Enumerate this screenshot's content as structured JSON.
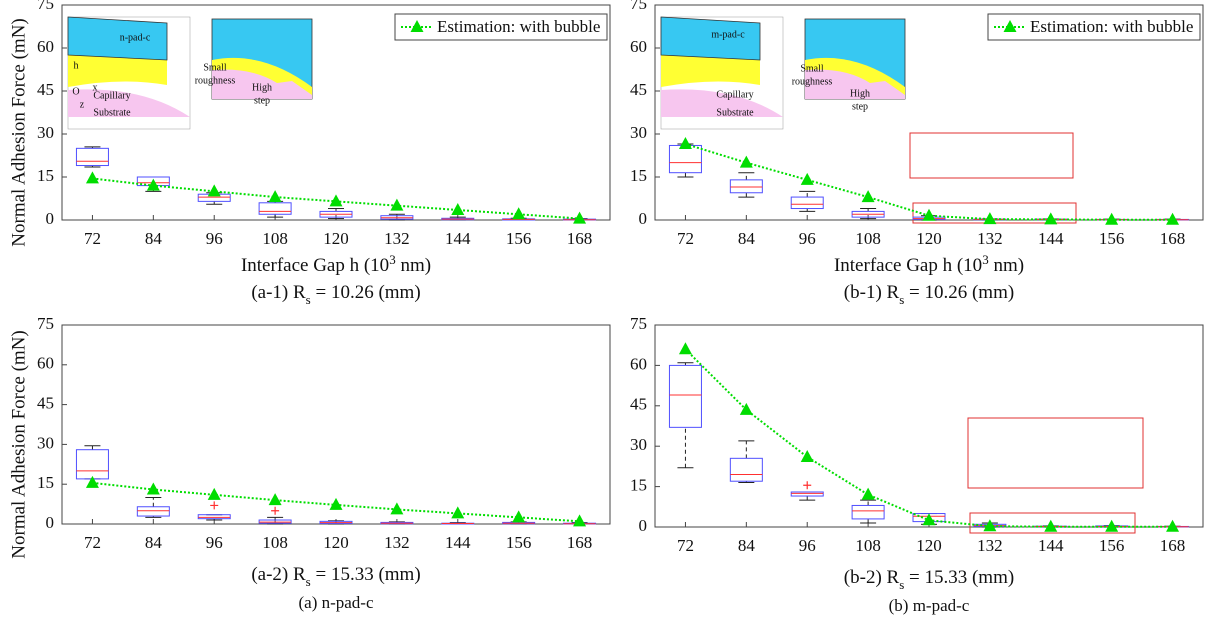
{
  "chart_data": [
    {
      "type": "box",
      "title_prefix": "(a-1) R",
      "title_sub": "s",
      "title_suffix": " = 10.26 (mm)",
      "y_label": "Normal Adhesion Force (mN)",
      "x_label_prefix": "Interface Gap h (10",
      "x_label_sup": "3",
      "x_label_suffix": " nm)",
      "annotations": [
        "n-pad-c",
        "h",
        "O",
        "x",
        "z",
        "Capillary",
        "Substrate",
        "Small",
        "roughness",
        "High",
        "step"
      ],
      "categories": [
        "72",
        "84",
        "96",
        "108",
        "120",
        "132",
        "144",
        "156",
        "168"
      ],
      "ylim": [
        0,
        75
      ],
      "yticks": [
        0,
        15,
        30,
        45,
        60,
        75
      ],
      "legend": "upper right",
      "box_color": "#4f4fff",
      "median_color": "#ff3030",
      "boxes": {
        "whislo": [
          18.5,
          10,
          5.5,
          1,
          0.5,
          0,
          0,
          0,
          0
        ],
        "q1": [
          19,
          12,
          6.5,
          2,
          1,
          0.3,
          0.1,
          0,
          0
        ],
        "med": [
          20.5,
          13,
          8,
          3,
          2,
          0.8,
          0.3,
          0.2,
          0.1
        ],
        "q3": [
          25,
          15,
          9,
          6,
          3,
          1.5,
          0.6,
          0.4,
          0.3
        ],
        "whishi": [
          25.5,
          15,
          9.5,
          6.5,
          4,
          2,
          1,
          0.6,
          0.5
        ],
        "outliers": [
          [],
          [],
          [],
          [],
          [],
          [],
          [],
          [],
          []
        ]
      },
      "series": [
        {
          "name": "Estimation: with bubble",
          "color": "#00dd00",
          "values": [
            14.5,
            12,
            10,
            8,
            6.5,
            5,
            3.5,
            2,
            0.5
          ]
        }
      ]
    },
    {
      "type": "box",
      "title_prefix": "(b-1) R",
      "title_sub": "s",
      "title_suffix": " = 10.26 (mm)",
      "x_label_prefix": "Interface Gap h (10",
      "x_label_sup": "3",
      "x_label_suffix": " nm)",
      "annotations": [
        "m-pad-c",
        "Capillary",
        "Substrate",
        "Small",
        "roughness",
        "High",
        "step"
      ],
      "categories": [
        "72",
        "84",
        "96",
        "108",
        "120",
        "132",
        "144",
        "156",
        "168"
      ],
      "ylim": [
        0,
        75
      ],
      "yticks": [
        0,
        15,
        30,
        45,
        60,
        75
      ],
      "legend": "upper right",
      "box_color": "#4f4fff",
      "median_color": "#ff3030",
      "boxes": {
        "whislo": [
          15,
          8,
          3,
          0.5,
          0,
          0,
          0,
          0,
          0
        ],
        "q1": [
          16.5,
          9.5,
          4,
          1,
          0.2,
          0.1,
          0.1,
          0,
          0
        ],
        "med": [
          20,
          11.5,
          5.5,
          2,
          0.5,
          0.2,
          0.2,
          0.1,
          0.1
        ],
        "q3": [
          26,
          14,
          8,
          3,
          1,
          0.3,
          0.3,
          0.2,
          0.2
        ],
        "whishi": [
          26.5,
          16.5,
          10,
          4,
          1.5,
          0.4,
          0.4,
          0.3,
          0.3
        ],
        "outliers": [
          [],
          [],
          [],
          [],
          [],
          [],
          [],
          [],
          []
        ]
      },
      "series": [
        {
          "name": "Estimation: with bubble",
          "color": "#00dd00",
          "values": [
            26.5,
            20,
            14,
            8,
            1.5,
            0.3,
            0.2,
            0.1,
            0.1
          ]
        }
      ]
    },
    {
      "type": "box",
      "title_prefix": "(a-2) R",
      "title_sub": "s",
      "title_suffix": " = 15.33 (mm)",
      "group_caption": "(a) n-pad-c",
      "y_label": "Normal Adhesion Force (mN)",
      "categories": [
        "72",
        "84",
        "96",
        "108",
        "120",
        "132",
        "144",
        "156",
        "168"
      ],
      "ylim": [
        0,
        75
      ],
      "yticks": [
        0,
        15,
        30,
        45,
        60,
        75
      ],
      "box_color": "#4f4fff",
      "median_color": "#ff3030",
      "boxes": {
        "whislo": [
          17,
          2.5,
          1.5,
          0,
          0,
          0,
          0,
          0,
          0
        ],
        "q1": [
          17,
          3,
          2,
          0.3,
          0.2,
          0.1,
          0,
          0.1,
          0
        ],
        "med": [
          20,
          5,
          2.5,
          0.7,
          0.5,
          0.3,
          0.2,
          0.3,
          0.1
        ],
        "q3": [
          28,
          6.5,
          3.5,
          1.5,
          1,
          0.6,
          0.3,
          0.6,
          0.3
        ],
        "whishi": [
          29.5,
          10,
          3.5,
          2.5,
          1.2,
          0.8,
          0.5,
          0.8,
          0.5
        ],
        "outliers": [
          [],
          [],
          [
            7
          ],
          [
            5
          ],
          [],
          [],
          [],
          [],
          []
        ]
      },
      "series": [
        {
          "name": "Estimation: with bubble",
          "color": "#00dd00",
          "values": [
            15.5,
            13,
            11,
            9,
            7.2,
            5.5,
            4,
            2.5,
            1
          ]
        }
      ]
    },
    {
      "type": "box",
      "title_prefix": "(b-2) R",
      "title_sub": "s",
      "title_suffix": " = 15.33 (mm)",
      "group_caption": "(b) m-pad-c",
      "categories": [
        "72",
        "84",
        "96",
        "108",
        "120",
        "132",
        "144",
        "156",
        "168"
      ],
      "ylim": [
        0,
        75
      ],
      "yticks": [
        0,
        15,
        30,
        45,
        60,
        75
      ],
      "box_color": "#4f4fff",
      "median_color": "#ff3030",
      "boxes": {
        "whislo": [
          22,
          16.5,
          10,
          1.5,
          1,
          0,
          0,
          0,
          0
        ],
        "q1": [
          37,
          17,
          11.5,
          3,
          2,
          0.2,
          0.1,
          0.1,
          0
        ],
        "med": [
          49,
          19.5,
          12.5,
          6,
          4,
          0.5,
          0.2,
          0.2,
          0.1
        ],
        "q3": [
          60,
          25.5,
          13,
          8,
          5,
          1,
          0.3,
          0.4,
          0.2
        ],
        "whishi": [
          61,
          32,
          13,
          10,
          5,
          1.5,
          0.4,
          0.5,
          0.3
        ],
        "outliers": [
          [],
          [],
          [
            15.5
          ],
          [],
          [],
          [],
          [],
          [],
          []
        ]
      },
      "series": [
        {
          "name": "Estimation: with bubble",
          "color": "#00dd00",
          "values": [
            66,
            43.5,
            26,
            12,
            2.5,
            0.3,
            0.1,
            0.1,
            0.1
          ]
        }
      ]
    }
  ]
}
